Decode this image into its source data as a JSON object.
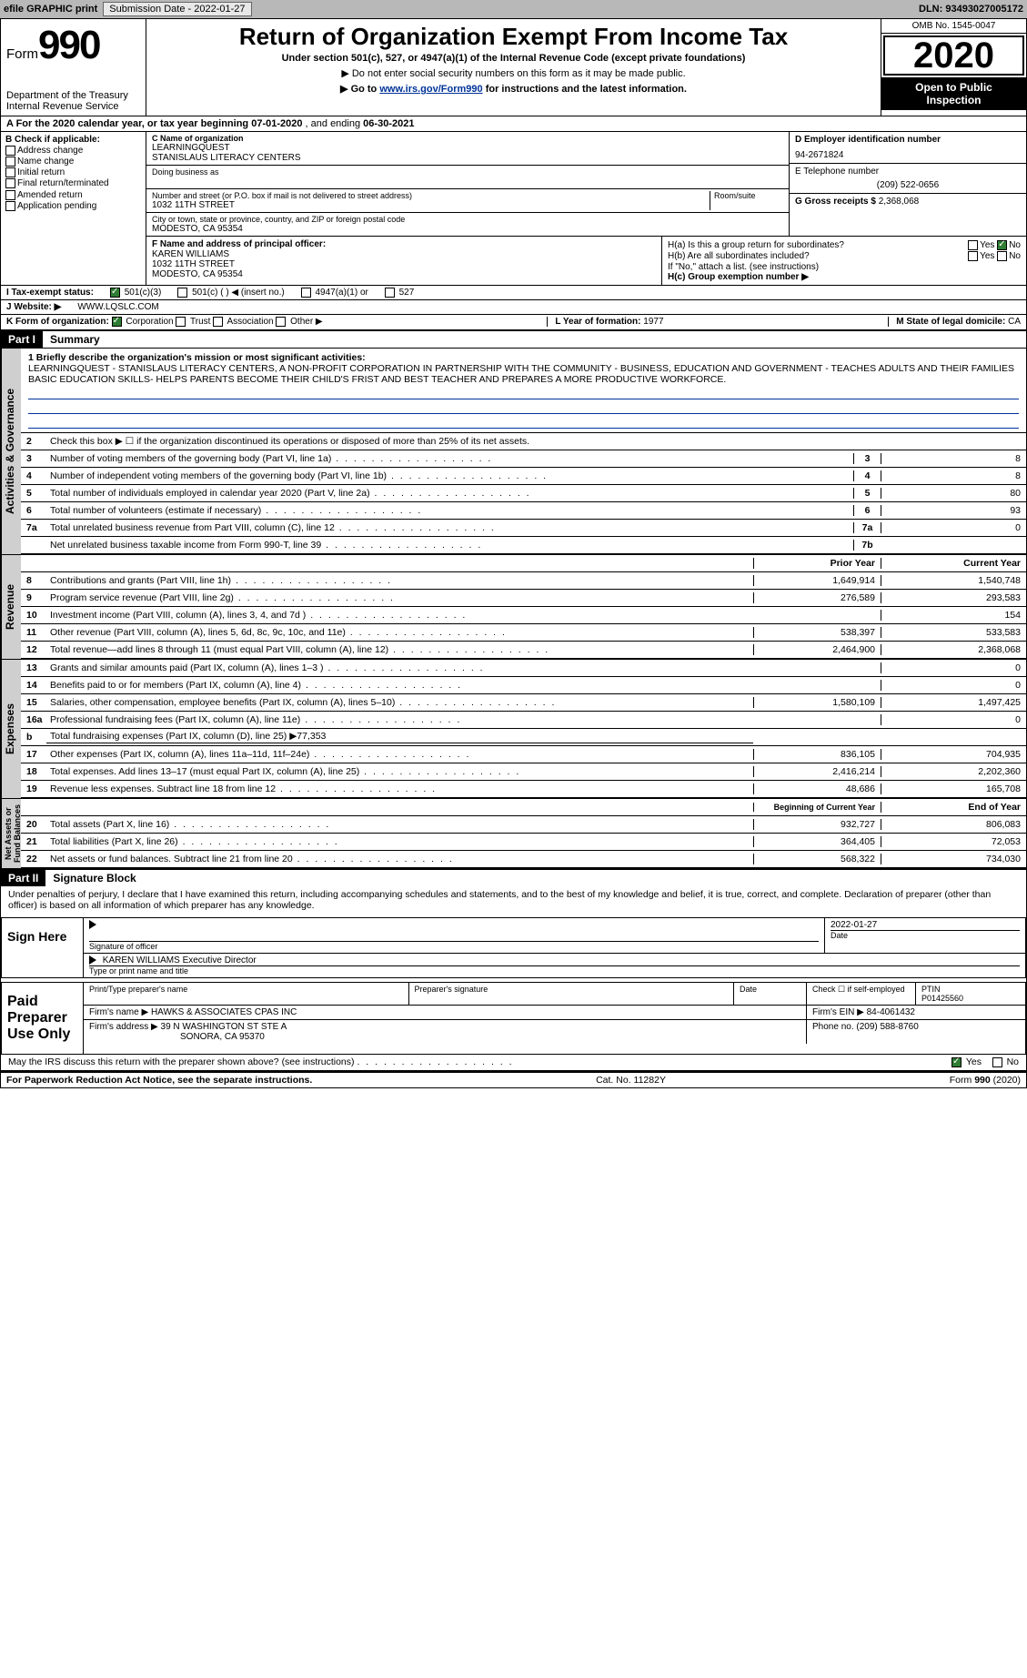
{
  "topbar": {
    "efile": "efile GRAPHIC print",
    "submission_label": "Submission Date - 2022-01-27",
    "dln_label": "DLN: 93493027005172"
  },
  "header": {
    "form_prefix": "Form",
    "form_number": "990",
    "title": "Return of Organization Exempt From Income Tax",
    "subtitle": "Under section 501(c), 527, or 4947(a)(1) of the Internal Revenue Code (except private foundations)",
    "note1": "▶ Do not enter social security numbers on this form as it may be made public.",
    "note2_pre": "▶ Go to ",
    "note2_link": "www.irs.gov/Form990",
    "note2_post": " for instructions and the latest information.",
    "dept": "Department of the Treasury\nInternal Revenue Service",
    "omb": "OMB No. 1545-0047",
    "year": "2020",
    "open": "Open to Public\nInspection"
  },
  "rowA": {
    "text_pre": "A For the 2020 calendar year, or tax year beginning ",
    "begin": "07-01-2020",
    "mid": "    , and ending ",
    "end": "06-30-2021"
  },
  "colB": {
    "header": "B Check if applicable:",
    "items": [
      "Address change",
      "Name change",
      "Initial return",
      "Final return/terminated",
      "Amended return",
      "Application pending"
    ]
  },
  "colC": {
    "name_label": "C Name of organization",
    "name1": "LEARNINGQUEST",
    "name2": "STANISLAUS LITERACY CENTERS",
    "dba_label": "Doing business as",
    "addr_label": "Number and street (or P.O. box if mail is not delivered to street address)",
    "room_label": "Room/suite",
    "addr": "1032 11TH STREET",
    "city_label": "City or town, state or province, country, and ZIP or foreign postal code",
    "city": "MODESTO, CA  95354"
  },
  "colD": {
    "ein_label": "D Employer identification number",
    "ein": "94-2671824",
    "tel_label": "E Telephone number",
    "tel": "(209) 522-0656",
    "gross_label": "G Gross receipts $ ",
    "gross": "2,368,068"
  },
  "colF": {
    "label": "F  Name and address of principal officer:",
    "name": "KAREN WILLIAMS",
    "addr1": "1032 11TH STREET",
    "addr2": "MODESTO, CA  95354"
  },
  "colH": {
    "ha_label": "H(a)  Is this a group return for subordinates?",
    "hb_label": "H(b)  Are all subordinates included?",
    "hb_note": "If \"No,\" attach a list. (see instructions)",
    "hc_label": "H(c)  Group exemption number ▶",
    "yes": "Yes",
    "no": "No"
  },
  "rowI": {
    "label": "I    Tax-exempt status:",
    "o1": "501(c)(3)",
    "o2": "501(c) (   ) ◀ (insert no.)",
    "o3": "4947(a)(1) or",
    "o4": "527"
  },
  "rowJ": {
    "label": "J   Website: ▶",
    "val": "WWW.LQSLC.COM"
  },
  "rowK": {
    "label": "K Form of organization:",
    "o1": "Corporation",
    "o2": "Trust",
    "o3": "Association",
    "o4": "Other ▶",
    "L_label": "L Year of formation: ",
    "L_val": "1977",
    "M_label": "M State of legal domicile: ",
    "M_val": "CA"
  },
  "part1": {
    "tab": "Part I",
    "title": "Summary",
    "q1_label": "1  Briefly describe the organization's mission or most significant activities:",
    "q1_text": "LEARNINGQUEST - STANISLAUS LITERACY CENTERS, A NON-PROFIT CORPORATION IN PARTNERSHIP WITH THE COMMUNITY - BUSINESS, EDUCATION AND GOVERNMENT - TEACHES ADULTS AND THEIR FAMILIES BASIC EDUCATION SKILLS- HELPS PARENTS BECOME THEIR CHILD'S FRIST AND BEST TEACHER AND PREPARES A MORE PRODUCTIVE WORKFORCE.",
    "q2": "Check this box ▶ ☐ if the organization discontinued its operations or disposed of more than 25% of its net assets.",
    "lines_gov": [
      {
        "n": "3",
        "d": "Number of voting members of the governing body (Part VI, line 1a)",
        "k": "3",
        "v": "8"
      },
      {
        "n": "4",
        "d": "Number of independent voting members of the governing body (Part VI, line 1b)",
        "k": "4",
        "v": "8"
      },
      {
        "n": "5",
        "d": "Total number of individuals employed in calendar year 2020 (Part V, line 2a)",
        "k": "5",
        "v": "80"
      },
      {
        "n": "6",
        "d": "Total number of volunteers (estimate if necessary)",
        "k": "6",
        "v": "93"
      },
      {
        "n": "7a",
        "d": "Total unrelated business revenue from Part VIII, column (C), line 12",
        "k": "7a",
        "v": "0"
      },
      {
        "n": "",
        "d": "Net unrelated business taxable income from Form 990-T, line 39",
        "k": "7b",
        "v": ""
      }
    ],
    "col_prior": "Prior Year",
    "col_current": "Current Year",
    "lines_rev": [
      {
        "n": "8",
        "d": "Contributions and grants (Part VIII, line 1h)",
        "p": "1,649,914",
        "c": "1,540,748"
      },
      {
        "n": "9",
        "d": "Program service revenue (Part VIII, line 2g)",
        "p": "276,589",
        "c": "293,583"
      },
      {
        "n": "10",
        "d": "Investment income (Part VIII, column (A), lines 3, 4, and 7d )",
        "p": "",
        "c": "154"
      },
      {
        "n": "11",
        "d": "Other revenue (Part VIII, column (A), lines 5, 6d, 8c, 9c, 10c, and 11e)",
        "p": "538,397",
        "c": "533,583"
      },
      {
        "n": "12",
        "d": "Total revenue—add lines 8 through 11 (must equal Part VIII, column (A), line 12)",
        "p": "2,464,900",
        "c": "2,368,068"
      }
    ],
    "lines_exp": [
      {
        "n": "13",
        "d": "Grants and similar amounts paid (Part IX, column (A), lines 1–3 )",
        "p": "",
        "c": "0"
      },
      {
        "n": "14",
        "d": "Benefits paid to or for members (Part IX, column (A), line 4)",
        "p": "",
        "c": "0"
      },
      {
        "n": "15",
        "d": "Salaries, other compensation, employee benefits (Part IX, column (A), lines 5–10)",
        "p": "1,580,109",
        "c": "1,497,425"
      },
      {
        "n": "16a",
        "d": "Professional fundraising fees (Part IX, column (A), line 11e)",
        "p": "",
        "c": "0"
      },
      {
        "n": "b",
        "d": "Total fundraising expenses (Part IX, column (D), line 25) ▶77,353",
        "p": "—",
        "c": "—"
      },
      {
        "n": "17",
        "d": "Other expenses (Part IX, column (A), lines 11a–11d, 11f–24e)",
        "p": "836,105",
        "c": "704,935"
      },
      {
        "n": "18",
        "d": "Total expenses. Add lines 13–17 (must equal Part IX, column (A), line 25)",
        "p": "2,416,214",
        "c": "2,202,360"
      },
      {
        "n": "19",
        "d": "Revenue less expenses. Subtract line 18 from line 12",
        "p": "48,686",
        "c": "165,708"
      }
    ],
    "col_beg": "Beginning of Current Year",
    "col_end": "End of Year",
    "lines_net": [
      {
        "n": "20",
        "d": "Total assets (Part X, line 16)",
        "p": "932,727",
        "c": "806,083"
      },
      {
        "n": "21",
        "d": "Total liabilities (Part X, line 26)",
        "p": "364,405",
        "c": "72,053"
      },
      {
        "n": "22",
        "d": "Net assets or fund balances. Subtract line 21 from line 20",
        "p": "568,322",
        "c": "734,030"
      }
    ],
    "vtab_gov": "Activities & Governance",
    "vtab_rev": "Revenue",
    "vtab_exp": "Expenses",
    "vtab_net": "Net Assets or\nFund Balances"
  },
  "part2": {
    "tab": "Part II",
    "title": "Signature Block",
    "decl": "Under penalties of perjury, I declare that I have examined this return, including accompanying schedules and statements, and to the best of my knowledge and belief, it is true, correct, and complete. Declaration of preparer (other than officer) is based on all information of which preparer has any knowledge.",
    "sign_here": "Sign Here",
    "sig_officer": "Signature of officer",
    "sig_date": "2022-01-27",
    "date_label": "Date",
    "typed_name": "KAREN WILLIAMS Executive Director",
    "typed_label": "Type or print name and title",
    "paid_label": "Paid Preparer Use Only",
    "prep_name_label": "Print/Type preparer's name",
    "prep_sig_label": "Preparer's signature",
    "prep_date_label": "Date",
    "self_emp": "Check ☐ if self-employed",
    "ptin_label": "PTIN",
    "ptin": "P01425560",
    "firm_name_label": "Firm's name     ▶",
    "firm_name": "HAWKS & ASSOCIATES CPAS INC",
    "firm_ein_label": "Firm's EIN ▶",
    "firm_ein": "84-4061432",
    "firm_addr_label": "Firm's address ▶",
    "firm_addr1": "39 N WASHINGTON ST STE A",
    "firm_addr2": "SONORA, CA  95370",
    "phone_label": "Phone no. ",
    "phone": "(209) 588-8760",
    "discuss": "May the IRS discuss this return with the preparer shown above? (see instructions)",
    "yes": "Yes",
    "no": "No"
  },
  "footer": {
    "left": "For Paperwork Reduction Act Notice, see the separate instructions.",
    "mid": "Cat. No. 11282Y",
    "right": "Form 990 (2020)"
  },
  "colors": {
    "link": "#003399",
    "topbar_bg": "#b8b8b8",
    "vtab_bg": "#cfcfcf",
    "check_green": "#2e7d32"
  }
}
